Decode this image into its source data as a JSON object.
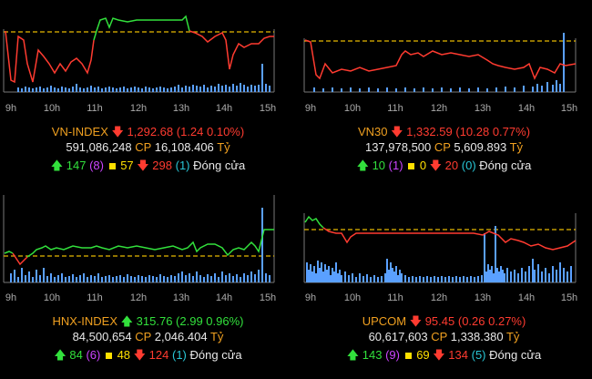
{
  "panels": [
    {
      "name": "VN-INDEX",
      "direction": "down",
      "value": "1,292.68",
      "change": "(1.24 0.10%)",
      "volume": "591,086,248",
      "cp_label": "CP",
      "trade_value": "16,108.406",
      "unit": "Tỷ",
      "up_count": "147",
      "ceiling_count": "(8)",
      "unchanged_count": "57",
      "down_count": "298",
      "floor_count": "(1)",
      "status": "Đóng cửa",
      "time_ticks": [
        "9h",
        "10h",
        "11h",
        "12h",
        "13h",
        "14h",
        "15h"
      ]
    },
    {
      "name": "VN30",
      "direction": "down",
      "value": "1,332.59",
      "change": "(10.28 0.77%)",
      "volume": "137,978,500",
      "cp_label": "CP",
      "trade_value": "5,609.893",
      "unit": "Tỷ",
      "up_count": "10",
      "ceiling_count": "(1)",
      "unchanged_count": "0",
      "down_count": "20",
      "floor_count": "(0)",
      "status": "Đóng cửa",
      "time_ticks": [
        "9h",
        "10h",
        "11h",
        "12h",
        "13h",
        "14h",
        "15h"
      ]
    },
    {
      "name": "HNX-INDEX",
      "direction": "up",
      "value": "315.76",
      "change": "(2.99 0.96%)",
      "volume": "84,500,654",
      "cp_label": "CP",
      "trade_value": "2,046.404",
      "unit": "Tỷ",
      "up_count": "84",
      "ceiling_count": "(6)",
      "unchanged_count": "48",
      "down_count": "124",
      "floor_count": "(1)",
      "status": "Đóng cửa",
      "time_ticks": [
        "9h",
        "10h",
        "11h",
        "12h",
        "13h",
        "14h",
        "15h"
      ]
    },
    {
      "name": "UPCOM",
      "direction": "down",
      "value": "95.45",
      "change": "(0.26 0.27%)",
      "volume": "60,617,603",
      "cp_label": "CP",
      "trade_value": "1,338.380",
      "unit": "Tỷ",
      "up_count": "143",
      "ceiling_count": "(9)",
      "unchanged_count": "69",
      "down_count": "134",
      "floor_count": "(5)",
      "status": "Đóng cửa",
      "time_ticks": [
        "9h",
        "10h",
        "11h",
        "12h",
        "13h",
        "14h",
        "15h"
      ]
    }
  ],
  "colors": {
    "up": "#32e03c",
    "down": "#ff3b30",
    "reference_line": "#e6b800",
    "volume": "#5aa0ff",
    "title": "#f0a020"
  },
  "icons": {
    "up": "arrow-up-icon",
    "down": "arrow-down-icon",
    "unchanged": "square-icon"
  }
}
